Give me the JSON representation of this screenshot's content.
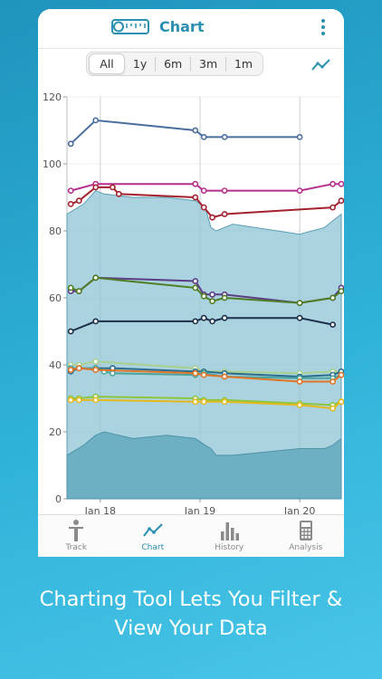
{
  "app": {
    "title": "Chart",
    "logo_icon": "tape-measure-icon",
    "menu_icon": "more-vertical-icon",
    "accent": "#2a8fb0"
  },
  "filters": {
    "options": [
      "All",
      "1y",
      "6m",
      "3m",
      "1m"
    ],
    "selected": "All",
    "toggle_icon": "line-chart-icon"
  },
  "chart_data": {
    "type": "line",
    "ylim": [
      0,
      120
    ],
    "yticks": [
      "120",
      "100",
      "80",
      "60",
      "40",
      "20",
      "0"
    ],
    "xticks": [
      "Jan 18",
      "Jan 19",
      "Jan 20"
    ],
    "grid": true,
    "bands": [
      {
        "color": "#8fc4d4",
        "x": [
          "2017-09-01",
          "2017-11-01",
          "2017-12-15",
          "2018-01-15",
          "2018-05-01",
          "2018-09-01",
          "2018-12-15",
          "2019-01-20",
          "2019-02-10",
          "2019-03-01",
          "2019-05-01",
          "2020-01-01",
          "2020-04-01",
          "2020-05-01",
          "2020-06-01"
        ],
        "y": [
          85,
          88,
          92,
          91,
          90,
          90,
          89,
          87,
          81,
          80,
          82,
          79,
          81,
          83,
          85
        ]
      },
      {
        "color": "#62a8be",
        "x": [
          "2017-09-01",
          "2017-11-01",
          "2017-12-15",
          "2018-01-15",
          "2018-05-01",
          "2018-09-01",
          "2018-12-15",
          "2019-01-20",
          "2019-02-10",
          "2019-03-01",
          "2019-05-01",
          "2020-01-01",
          "2020-04-01",
          "2020-05-01",
          "2020-06-01"
        ],
        "y": [
          13,
          16,
          19,
          20,
          18,
          19,
          18,
          16,
          15,
          13,
          13,
          15,
          15,
          16,
          18
        ]
      }
    ],
    "series": [
      {
        "color": "#4a6f9e",
        "x": [
          "2017-09-15",
          "2017-12-15",
          "2018-12-15",
          "2019-01-15",
          "2019-04-01",
          "2020-01-01"
        ],
        "y": [
          106,
          113,
          110,
          108,
          108,
          108
        ]
      },
      {
        "color": "#b5308c",
        "x": [
          "2017-09-15",
          "2017-12-15",
          "2018-12-15",
          "2019-01-15",
          "2019-04-01",
          "2020-01-01",
          "2020-05-01",
          "2020-06-01"
        ],
        "y": [
          92,
          94,
          94,
          92,
          92,
          92,
          94,
          94
        ]
      },
      {
        "color": "#a3222e",
        "x": [
          "2017-09-15",
          "2017-10-15",
          "2017-12-15",
          "2018-02-15",
          "2018-03-10",
          "2018-12-15",
          "2019-01-15",
          "2019-02-15",
          "2019-04-01",
          "2020-05-01",
          "2020-06-01"
        ],
        "y": [
          88,
          89,
          93,
          93,
          91,
          90,
          87,
          84,
          85,
          87,
          89
        ]
      },
      {
        "color": "#5b3d86",
        "x": [
          "2017-09-15",
          "2017-10-15",
          "2017-12-15",
          "2018-12-15",
          "2019-01-15",
          "2019-02-15",
          "2019-04-01",
          "2020-01-01",
          "2020-05-01",
          "2020-06-01"
        ],
        "y": [
          62,
          62,
          66,
          65,
          61,
          61,
          61,
          58.5,
          60,
          63
        ]
      },
      {
        "color": "#4f7d24",
        "x": [
          "2017-09-15",
          "2017-10-15",
          "2017-12-15",
          "2018-12-15",
          "2019-01-15",
          "2019-02-15",
          "2019-04-01",
          "2020-01-01",
          "2020-05-01",
          "2020-06-01"
        ],
        "y": [
          63,
          62,
          66,
          63,
          60.5,
          59,
          60,
          58.5,
          60,
          62
        ]
      },
      {
        "color": "#1c2e4a",
        "x": [
          "2017-09-15",
          "2017-12-15",
          "2018-12-15",
          "2019-01-15",
          "2019-02-15",
          "2019-04-01",
          "2020-01-01",
          "2020-05-01"
        ],
        "y": [
          50,
          53,
          53,
          54,
          53,
          54,
          54,
          52
        ]
      },
      {
        "color": "#a9d08e",
        "x": [
          "2017-09-15",
          "2017-10-15",
          "2017-12-15",
          "2018-12-15",
          "2019-01-15",
          "2019-04-01",
          "2020-01-01",
          "2020-05-01",
          "2020-06-01"
        ],
        "y": [
          40,
          40,
          41,
          39,
          38,
          38,
          37.5,
          38,
          38
        ]
      },
      {
        "color": "#2a6e8e",
        "x": [
          "2017-09-15",
          "2017-10-15",
          "2017-12-15",
          "2018-02-15",
          "2018-12-15",
          "2019-01-15",
          "2019-04-01",
          "2020-01-01",
          "2020-05-01",
          "2020-06-01"
        ],
        "y": [
          38,
          39,
          39,
          39,
          38,
          38,
          37.5,
          36.5,
          37,
          38
        ]
      },
      {
        "color": "#4aa39c",
        "x": [
          "2017-09-15",
          "2017-10-15",
          "2017-12-15",
          "2018-01-15",
          "2018-02-15",
          "2018-12-15",
          "2019-01-15",
          "2019-04-01",
          "2020-01-01",
          "2020-05-01",
          "2020-06-01"
        ],
        "y": [
          39,
          39,
          39,
          38,
          37.5,
          37,
          37.5,
          36.5,
          36,
          36,
          37
        ]
      },
      {
        "color": "#e07427",
        "x": [
          "2017-09-15",
          "2017-10-15",
          "2017-12-15",
          "2018-12-15",
          "2019-01-15",
          "2019-04-01",
          "2020-01-01",
          "2020-05-01",
          "2020-06-01"
        ],
        "y": [
          38.5,
          39,
          38.5,
          37.5,
          37,
          36.5,
          35,
          35,
          37
        ]
      },
      {
        "color": "#8cc63f",
        "x": [
          "2017-09-15",
          "2017-10-15",
          "2017-12-15",
          "2018-12-15",
          "2019-01-15",
          "2019-04-01",
          "2020-01-01",
          "2020-05-01",
          "2020-06-01"
        ],
        "y": [
          30,
          30,
          30.5,
          30,
          29.5,
          29.5,
          28.5,
          28,
          29
        ]
      },
      {
        "color": "#e6b820",
        "x": [
          "2017-09-15",
          "2017-10-15",
          "2017-12-15",
          "2018-12-15",
          "2019-01-15",
          "2019-04-01",
          "2020-01-01",
          "2020-05-01",
          "2020-06-01"
        ],
        "y": [
          29.5,
          29.5,
          29.5,
          29,
          29,
          29,
          28,
          27,
          29
        ]
      }
    ]
  },
  "tabs": [
    {
      "label": "Track",
      "icon": "person-icon",
      "active": false
    },
    {
      "label": "Chart",
      "icon": "line-chart-icon",
      "active": true
    },
    {
      "label": "History",
      "icon": "bar-chart-icon",
      "active": false
    },
    {
      "label": "Analysis",
      "icon": "calculator-icon",
      "active": false
    }
  ],
  "caption": {
    "line1": "Charting Tool Lets You Filter &",
    "line2": "View Your Data"
  }
}
